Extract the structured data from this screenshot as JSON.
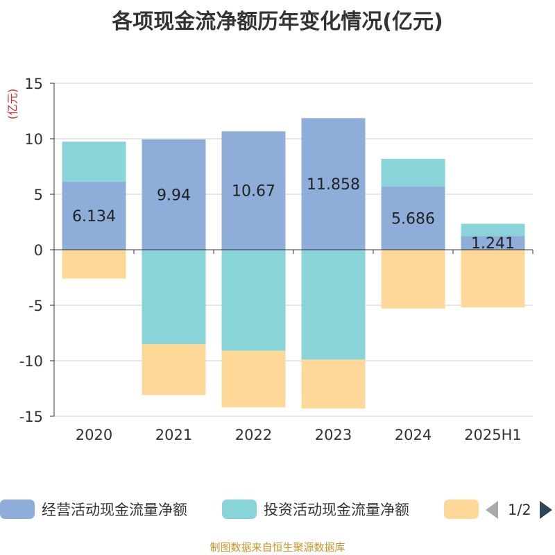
{
  "title": "各项现金流净额历年变化情况(亿元)",
  "unit_label": "(亿元)",
  "source": "制图数据来自恒生聚源数据库",
  "pager": {
    "text": "1/2"
  },
  "colors": {
    "operating": "#8eadd9",
    "investing": "#88d4d8",
    "financing": "#fdd898",
    "grid": "#cccccc",
    "axis": "#333333"
  },
  "chart_data": {
    "type": "bar",
    "stacked": true,
    "categories": [
      "2020",
      "2021",
      "2022",
      "2023",
      "2024",
      "2025H1"
    ],
    "ylim": [
      -15,
      15
    ],
    "yticks": [
      15,
      10,
      5,
      0,
      -5,
      -10,
      -15
    ],
    "ytick_labels": [
      "15",
      "10",
      "5",
      "0",
      "-5",
      "-10",
      "-15"
    ],
    "grid": true,
    "legend_position": "bottom",
    "series": [
      {
        "name": "经营活动现金流量净额",
        "values": [
          6.134,
          9.94,
          10.67,
          11.858,
          5.686,
          1.241
        ],
        "labels": [
          "6.134",
          "9.94",
          "10.67",
          "11.858",
          "5.686",
          "1.241"
        ]
      },
      {
        "name": "投资活动现金流量净额",
        "values": [
          3.6,
          -8.5,
          -9.1,
          -9.9,
          2.5,
          1.1
        ]
      },
      {
        "name": "",
        "values": [
          -2.6,
          -4.6,
          -5.1,
          -4.4,
          -5.3,
          -5.2
        ]
      }
    ]
  }
}
